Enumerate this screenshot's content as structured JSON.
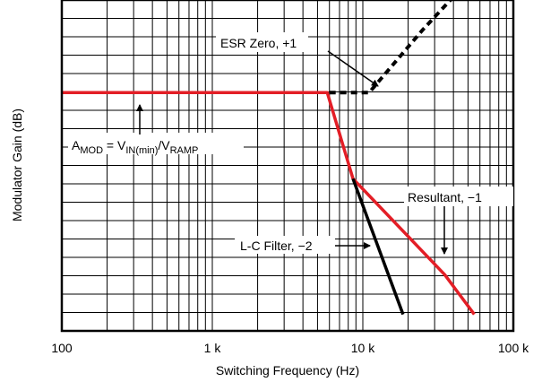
{
  "chart_data": {
    "type": "line",
    "xlabel": "Switching Frequency (Hz)",
    "ylabel": "Modulator Gain (dB)",
    "x_scale": "log",
    "xlim": [
      100,
      100000
    ],
    "x_ticks": [
      100,
      1000,
      10000,
      100000
    ],
    "x_tick_labels": [
      "100",
      "1 k",
      "10 k",
      "100 k"
    ],
    "y_ticks_labeled": false,
    "grid": true,
    "series": [
      {
        "name": "ESR Zero, +1",
        "color": "#000000",
        "style": "dashed",
        "x": [
          6000,
          11000,
          25000,
          42000
        ],
        "y": [
          0.72,
          0.72,
          0.91,
          1.02
        ]
      },
      {
        "name": "L-C Filter, −2",
        "color": "#000000",
        "style": "solid",
        "x": [
          8600,
          18500
        ],
        "y": [
          0.46,
          0.05
        ]
      },
      {
        "name": "Resultant, −1",
        "color": "#e31e26",
        "style": "solid",
        "x": [
          100,
          5800,
          8600,
          35000,
          55000
        ],
        "y": [
          0.72,
          0.72,
          0.46,
          0.17,
          0.05
        ]
      }
    ],
    "annotations": [
      {
        "id": "amod",
        "parts": [
          {
            "text": "A",
            "sub": false
          },
          {
            "text": "MOD",
            "sub": true
          },
          {
            "text": " = V",
            "sub": false
          },
          {
            "text": "IN(min)",
            "sub": true
          },
          {
            "text": "/V",
            "sub": false
          },
          {
            "text": "RAMP",
            "sub": true
          }
        ]
      },
      {
        "id": "esr",
        "text": "ESR Zero, +1"
      },
      {
        "id": "lc",
        "text": "L-C Filter, −2"
      },
      {
        "id": "res",
        "text": "Resultant, −1"
      }
    ]
  }
}
